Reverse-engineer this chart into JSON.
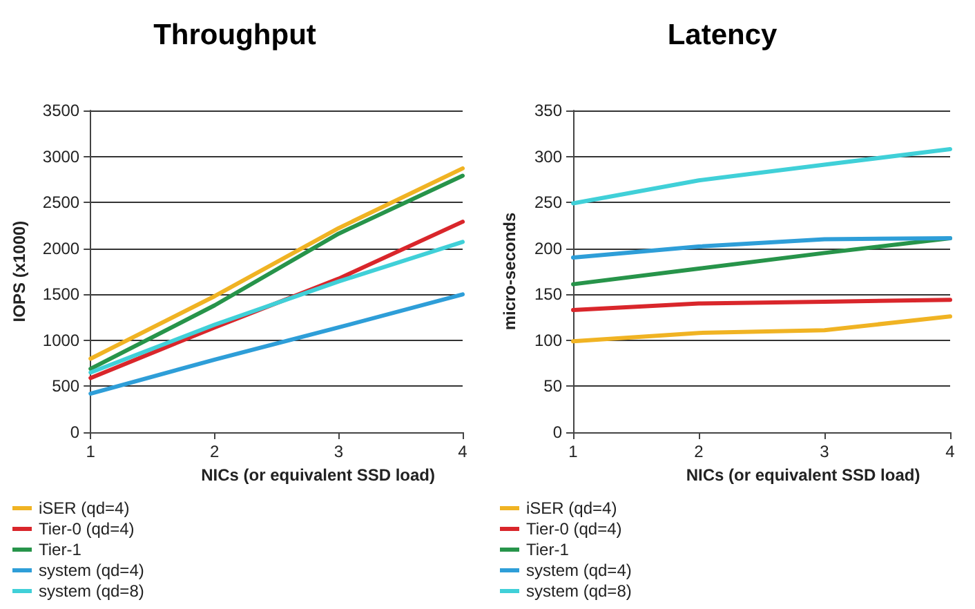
{
  "chart_data": [
    {
      "type": "line",
      "title": "Throughput",
      "xlabel": "NICs (or equivalent SSD load)",
      "ylabel": "IOPS (x1000)",
      "x": [
        1,
        2,
        3,
        4
      ],
      "xlim": [
        1,
        4
      ],
      "xticks": [
        1,
        2,
        3,
        4
      ],
      "ylim": [
        0,
        3500
      ],
      "yticks": [
        0,
        500,
        1000,
        1500,
        2000,
        2500,
        3000,
        3500
      ],
      "grid": "y",
      "legend": "bottom left",
      "marker": "none",
      "line_style": "solid",
      "series": [
        {
          "name": "iSER (qd=4)",
          "color": "#f0b323",
          "values": [
            800,
            1480,
            2220,
            2870
          ]
        },
        {
          "name": "Tier-0 (qd=4)",
          "color": "#d9262b",
          "values": [
            590,
            1140,
            1670,
            2290
          ]
        },
        {
          "name": "Tier-1",
          "color": "#27944a",
          "values": [
            690,
            1380,
            2160,
            2790
          ]
        },
        {
          "name": "system (qd=4)",
          "color": "#2e9ed8",
          "values": [
            420,
            790,
            1140,
            1500
          ]
        },
        {
          "name": "system (qd=8)",
          "color": "#40d0d8",
          "values": [
            650,
            1170,
            1640,
            2070
          ]
        }
      ]
    },
    {
      "type": "line",
      "title": "Latency",
      "xlabel": "NICs (or equivalent SSD load)",
      "ylabel": "micro-seconds",
      "x": [
        1,
        2,
        3,
        4
      ],
      "xlim": [
        1,
        4
      ],
      "xticks": [
        1,
        2,
        3,
        4
      ],
      "ylim": [
        0,
        350
      ],
      "yticks": [
        0,
        50,
        100,
        150,
        200,
        250,
        300,
        350
      ],
      "grid": "y",
      "legend": "bottom left",
      "marker": "none",
      "line_style": "solid",
      "series": [
        {
          "name": "iSER (qd=4)",
          "color": "#f0b323",
          "values": [
            99,
            108,
            111,
            126
          ]
        },
        {
          "name": "Tier-0 (qd=4)",
          "color": "#d9262b",
          "values": [
            133,
            140,
            142,
            144
          ]
        },
        {
          "name": "Tier-1",
          "color": "#27944a",
          "values": [
            161,
            178,
            195,
            211
          ]
        },
        {
          "name": "system (qd=4)",
          "color": "#2e9ed8",
          "values": [
            190,
            202,
            210,
            211
          ]
        },
        {
          "name": "system (qd=8)",
          "color": "#40d0d8",
          "values": [
            249,
            274,
            291,
            308
          ]
        }
      ]
    }
  ]
}
